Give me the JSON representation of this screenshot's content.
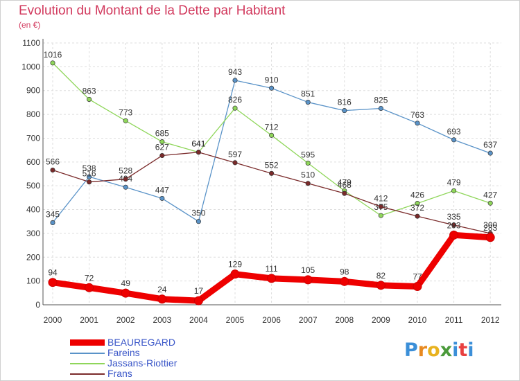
{
  "header": {
    "title": "Evolution du Montant de la Dette par Habitant",
    "unit": "(en €)"
  },
  "logo": {
    "letters": [
      "P",
      "r",
      "o",
      "x",
      "i",
      "t",
      "i"
    ],
    "colors": [
      "#3b8fd8",
      "#e8891f",
      "#e8b21f",
      "#4a9a3a",
      "#3b8fd8",
      "#e84040",
      "#3b8fd8"
    ]
  },
  "chart_data": {
    "type": "line",
    "title": "Evolution du Montant de la Dette par Habitant",
    "subtitle": "(en €)",
    "xlabel": "",
    "ylabel": "",
    "x": [
      "2000",
      "2001",
      "2002",
      "2003",
      "2004",
      "2005",
      "2006",
      "2007",
      "2008",
      "2009",
      "2010",
      "2011",
      "2012"
    ],
    "ylim": [
      0,
      1100
    ],
    "yticks": [
      0,
      100,
      200,
      300,
      400,
      500,
      600,
      700,
      800,
      900,
      1000,
      1100
    ],
    "grid": true,
    "legend_position": "bottom-left",
    "series": [
      {
        "name": "BEAUREGARD",
        "color": "#ee0000",
        "values": [
          94,
          72,
          49,
          24,
          17,
          129,
          111,
          105,
          98,
          82,
          77,
          293,
          283
        ],
        "labels": [
          "94",
          "72",
          "49",
          "24",
          "17",
          "129",
          "111",
          "105",
          "98",
          "82",
          "77",
          "293",
          "283"
        ]
      },
      {
        "name": "Fareins",
        "color": "#5a93c8",
        "values": [
          345,
          538,
          494,
          447,
          350,
          943,
          910,
          851,
          816,
          825,
          763,
          693,
          637
        ],
        "labels": [
          "345",
          "538",
          "494",
          "447",
          "350",
          "943",
          "910",
          "851",
          "816",
          "825",
          "763",
          "693",
          "637"
        ]
      },
      {
        "name": "Jassans-Riottier",
        "color": "#8fd65a",
        "values": [
          1016,
          863,
          773,
          685,
          641,
          826,
          712,
          595,
          479,
          375,
          426,
          479,
          427
        ],
        "labels": [
          "1016",
          "863",
          "773",
          "685",
          "641",
          "826",
          "712",
          "595",
          "479",
          "375",
          "426",
          "479",
          "427"
        ]
      },
      {
        "name": "Frans",
        "color": "#7a2a2a",
        "values": [
          566,
          516,
          528,
          627,
          641,
          597,
          552,
          510,
          468,
          412,
          372,
          335,
          300
        ],
        "labels": [
          "566",
          "516",
          "528",
          "627",
          "641",
          "597",
          "552",
          "510",
          "468",
          "412",
          "372",
          "335",
          "300"
        ]
      }
    ]
  }
}
